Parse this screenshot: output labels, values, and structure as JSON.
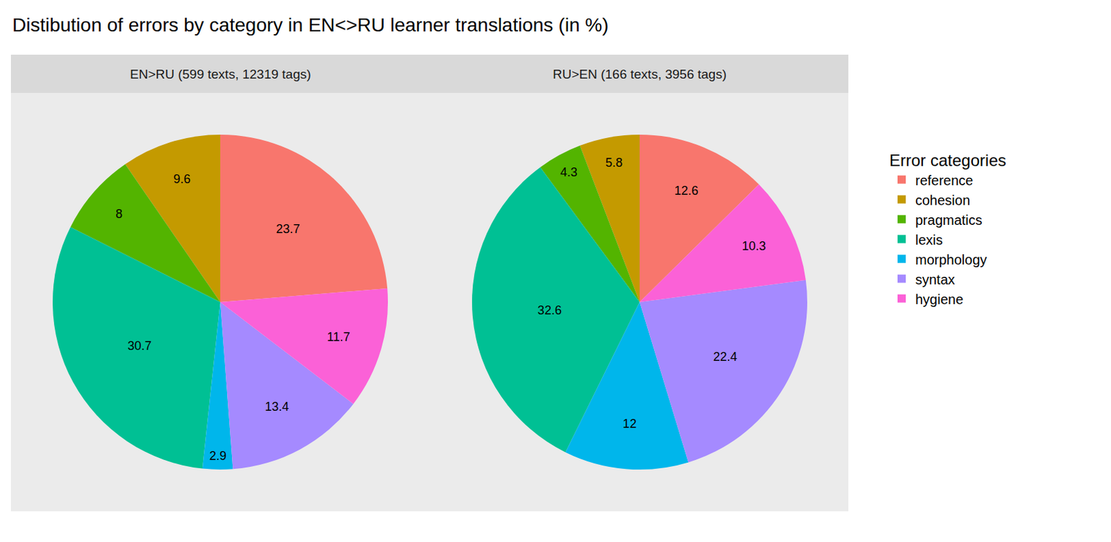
{
  "chart_data": {
    "type": "pie",
    "title": "Distibution of errors by category in EN<>RU learner translations (in %)",
    "legend_title": "Error categories",
    "legend": "right",
    "data_labels": true,
    "categories": [
      "reference",
      "cohesion",
      "pragmatics",
      "lexis",
      "morphology",
      "syntax",
      "hygiene"
    ],
    "colors": [
      "#F8766D",
      "#C49A00",
      "#53B400",
      "#00C094",
      "#00B6EB",
      "#A58AFF",
      "#FB61D7"
    ],
    "series": [
      {
        "name": "EN>RU (599 texts, 12319 tags)",
        "values": [
          23.7,
          9.6,
          8,
          30.7,
          2.9,
          13.4,
          11.7
        ]
      },
      {
        "name": "RU>EN (166 texts, 3956 tags)",
        "values": [
          12.6,
          5.8,
          4.3,
          32.6,
          12,
          22.4,
          10.3
        ]
      }
    ]
  }
}
